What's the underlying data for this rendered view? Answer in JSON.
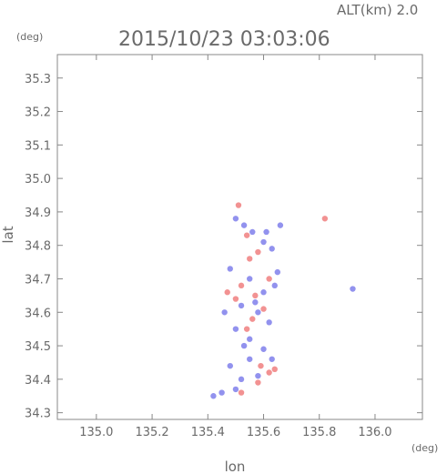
{
  "chart_data": {
    "type": "scatter",
    "title": "2015/10/23 03:03:06",
    "altitude_label": "ALT(km) 2.0",
    "xlabel": "lon",
    "ylabel": "lat",
    "x_unit": "(deg)",
    "y_unit": "(deg)",
    "xlim": [
      134.86,
      136.17
    ],
    "ylim": [
      34.28,
      35.37
    ],
    "x_ticks": [
      "135.0",
      "135.2",
      "135.4",
      "135.6",
      "135.8",
      "136.0"
    ],
    "y_ticks": [
      "34.3",
      "34.4",
      "34.5",
      "34.6",
      "34.7",
      "34.8",
      "34.9",
      "35.0",
      "35.1",
      "35.2",
      "35.3"
    ],
    "grid": false,
    "colors": {
      "positive": "#ee6e6e",
      "negative": "#6e6ee8",
      "frame": "#888888"
    },
    "series": [
      {
        "polarity": "negative",
        "points": [
          [
            135.5,
            34.88
          ],
          [
            135.53,
            34.86
          ],
          [
            135.56,
            34.84
          ],
          [
            135.6,
            34.81
          ],
          [
            135.63,
            34.79
          ],
          [
            135.66,
            34.86
          ],
          [
            135.48,
            34.73
          ],
          [
            135.55,
            34.7
          ],
          [
            135.6,
            34.66
          ],
          [
            135.52,
            34.62
          ],
          [
            135.58,
            34.6
          ],
          [
            135.62,
            34.57
          ],
          [
            135.5,
            34.55
          ],
          [
            135.55,
            34.52
          ],
          [
            135.6,
            34.49
          ],
          [
            135.63,
            34.46
          ],
          [
            135.48,
            34.44
          ],
          [
            135.52,
            34.4
          ],
          [
            135.58,
            34.41
          ],
          [
            135.45,
            34.36
          ],
          [
            135.5,
            34.37
          ],
          [
            135.42,
            34.35
          ],
          [
            135.92,
            34.67
          ],
          [
            135.65,
            34.72
          ],
          [
            135.55,
            34.46
          ],
          [
            135.57,
            34.63
          ],
          [
            135.53,
            34.5
          ],
          [
            135.61,
            34.84
          ],
          [
            135.46,
            34.6
          ],
          [
            135.64,
            34.68
          ]
        ]
      },
      {
        "polarity": "positive",
        "points": [
          [
            135.51,
            34.92
          ],
          [
            135.54,
            34.83
          ],
          [
            135.58,
            34.78
          ],
          [
            135.52,
            34.68
          ],
          [
            135.57,
            34.65
          ],
          [
            135.6,
            34.61
          ],
          [
            135.56,
            34.58
          ],
          [
            135.54,
            34.55
          ],
          [
            135.59,
            34.44
          ],
          [
            135.62,
            34.42
          ],
          [
            135.64,
            34.43
          ],
          [
            135.58,
            34.39
          ],
          [
            135.52,
            34.36
          ],
          [
            135.82,
            34.88
          ],
          [
            135.5,
            34.64
          ],
          [
            135.62,
            34.7
          ],
          [
            135.47,
            34.66
          ],
          [
            135.55,
            34.76
          ]
        ]
      }
    ]
  }
}
